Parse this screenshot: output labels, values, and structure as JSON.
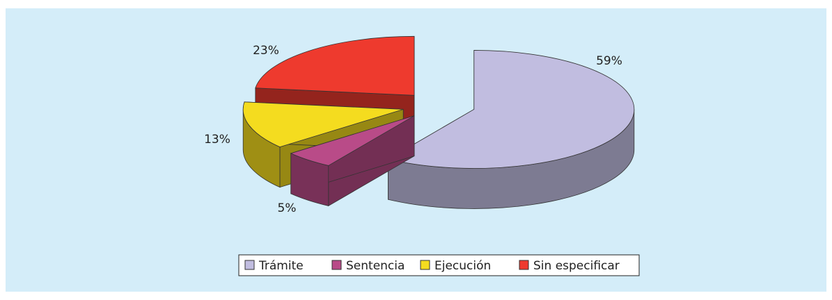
{
  "chart_data": {
    "type": "pie3d",
    "categories": [
      "Trámite",
      "Sentencia",
      "Ejecución",
      "Sin especificar"
    ],
    "values": [
      59,
      5,
      13,
      23
    ],
    "value_labels": [
      "59%",
      "5%",
      "13%",
      "23%"
    ],
    "colors": [
      "#c1bde0",
      "#b94b88",
      "#f4dc1f",
      "#ee3a2e"
    ],
    "legend": "bottom"
  }
}
